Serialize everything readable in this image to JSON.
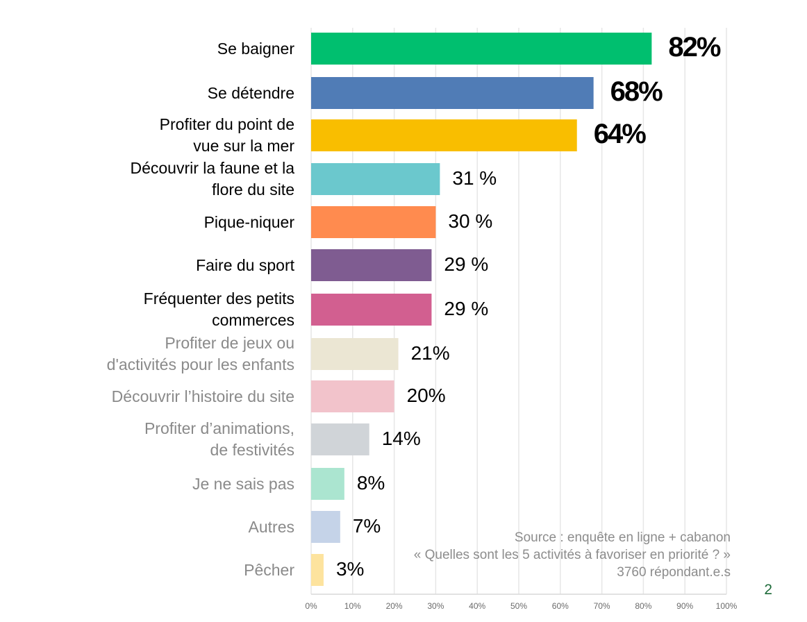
{
  "chart_data": {
    "type": "bar",
    "orientation": "horizontal",
    "categories": [
      "Se baigner",
      "Se détendre",
      "Profiter du point de\nvue sur la mer",
      "Découvrir la faune et la\nflore du site",
      "Pique-niquer",
      "Faire du sport",
      "Fréquenter des petits\ncommerces",
      "Profiter de jeux ou\nd'activités pour les enfants",
      "Découvrir l’histoire du site",
      "Profiter d’animations,\nde festivités",
      "Je ne sais pas",
      "Autres",
      "Pêcher"
    ],
    "values": [
      82,
      68,
      64,
      31,
      30,
      29,
      29,
      21,
      20,
      14,
      8,
      7,
      3
    ],
    "value_labels": [
      "82%",
      "68%",
      "64%",
      "31  %",
      "30  %",
      "29  %",
      "29  %",
      "21%",
      "20%",
      "14%",
      "8%",
      "7%",
      "3%"
    ],
    "colors": [
      "#00bf6f",
      "#507cb6",
      "#f9be00",
      "#6bc8cd",
      "#ff8b4f",
      "#7f5c91",
      "#d25f90",
      "#ebe6d3",
      "#f2c3cb",
      "#d0d4d8",
      "#abe5d0",
      "#c5d3e8",
      "#fde39e"
    ],
    "label_colors": [
      "#000000",
      "#000000",
      "#000000",
      "#000000",
      "#000000",
      "#000000",
      "#000000",
      "#8a8a8a",
      "#8a8a8a",
      "#8a8a8a",
      "#8a8a8a",
      "#8a8a8a",
      "#8a8a8a"
    ],
    "xlim": [
      0,
      100
    ],
    "x_ticks": [
      "0%",
      "10%",
      "20%",
      "30%",
      "40%",
      "50%",
      "60%",
      "70%",
      "80%",
      "90%",
      "100%"
    ],
    "grid": true,
    "title": "",
    "xlabel": "",
    "ylabel": ""
  },
  "source": {
    "line1": "Source : enquête en ligne + cabanon",
    "line2": "« Quelles sont les 5 activités à favoriser en priorité ? »",
    "line3": "3760 répondant.e.s"
  },
  "page_number": "2"
}
